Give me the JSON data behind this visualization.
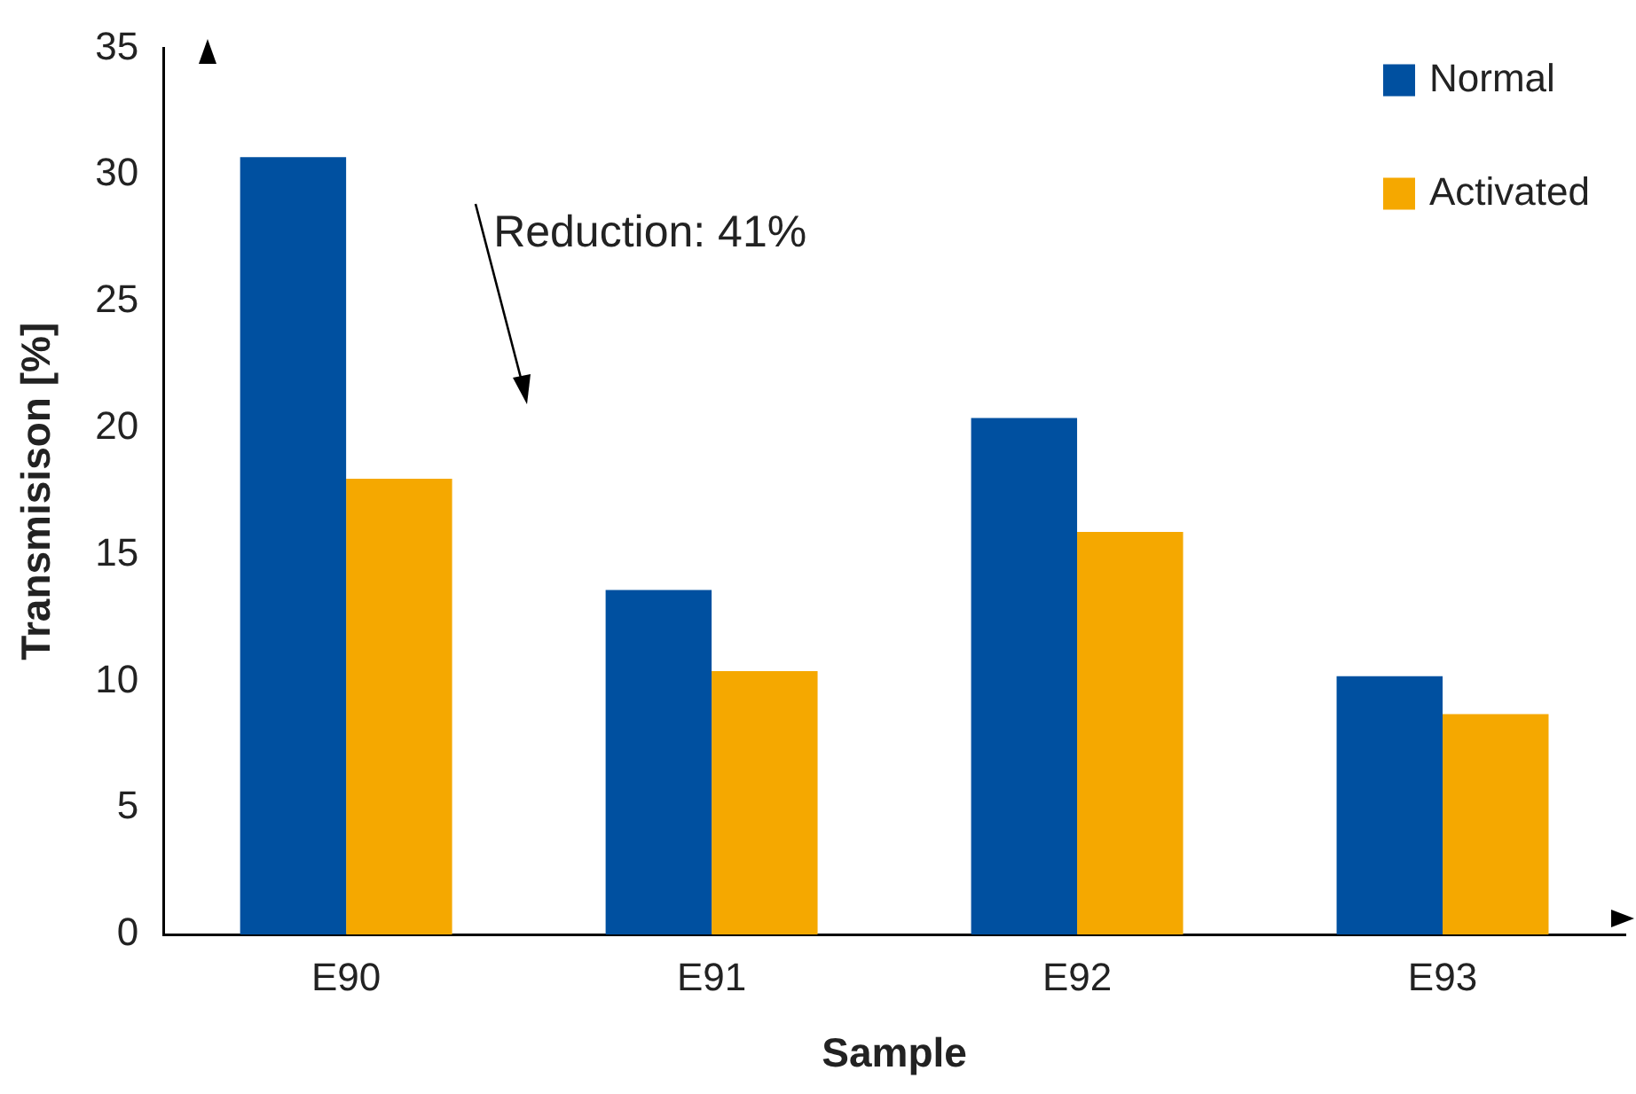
{
  "chart_data": {
    "type": "bar",
    "xlabel": "Sample",
    "ylabel": "Transmisison [%]",
    "categories": [
      "E90",
      "E91",
      "E92",
      "E93"
    ],
    "series": [
      {
        "name": "Normal",
        "color": "#0050a0",
        "values": [
          30.7,
          13.6,
          20.4,
          10.2
        ]
      },
      {
        "name": "Activated",
        "color": "#f5a800",
        "values": [
          18.0,
          10.4,
          15.9,
          8.7
        ]
      }
    ],
    "ylim": [
      0,
      35
    ],
    "yticks": [
      0,
      5,
      10,
      15,
      20,
      25,
      30,
      35
    ],
    "grid": false,
    "legend": "top right",
    "annotations": [
      "Reduction: 41%"
    ]
  }
}
